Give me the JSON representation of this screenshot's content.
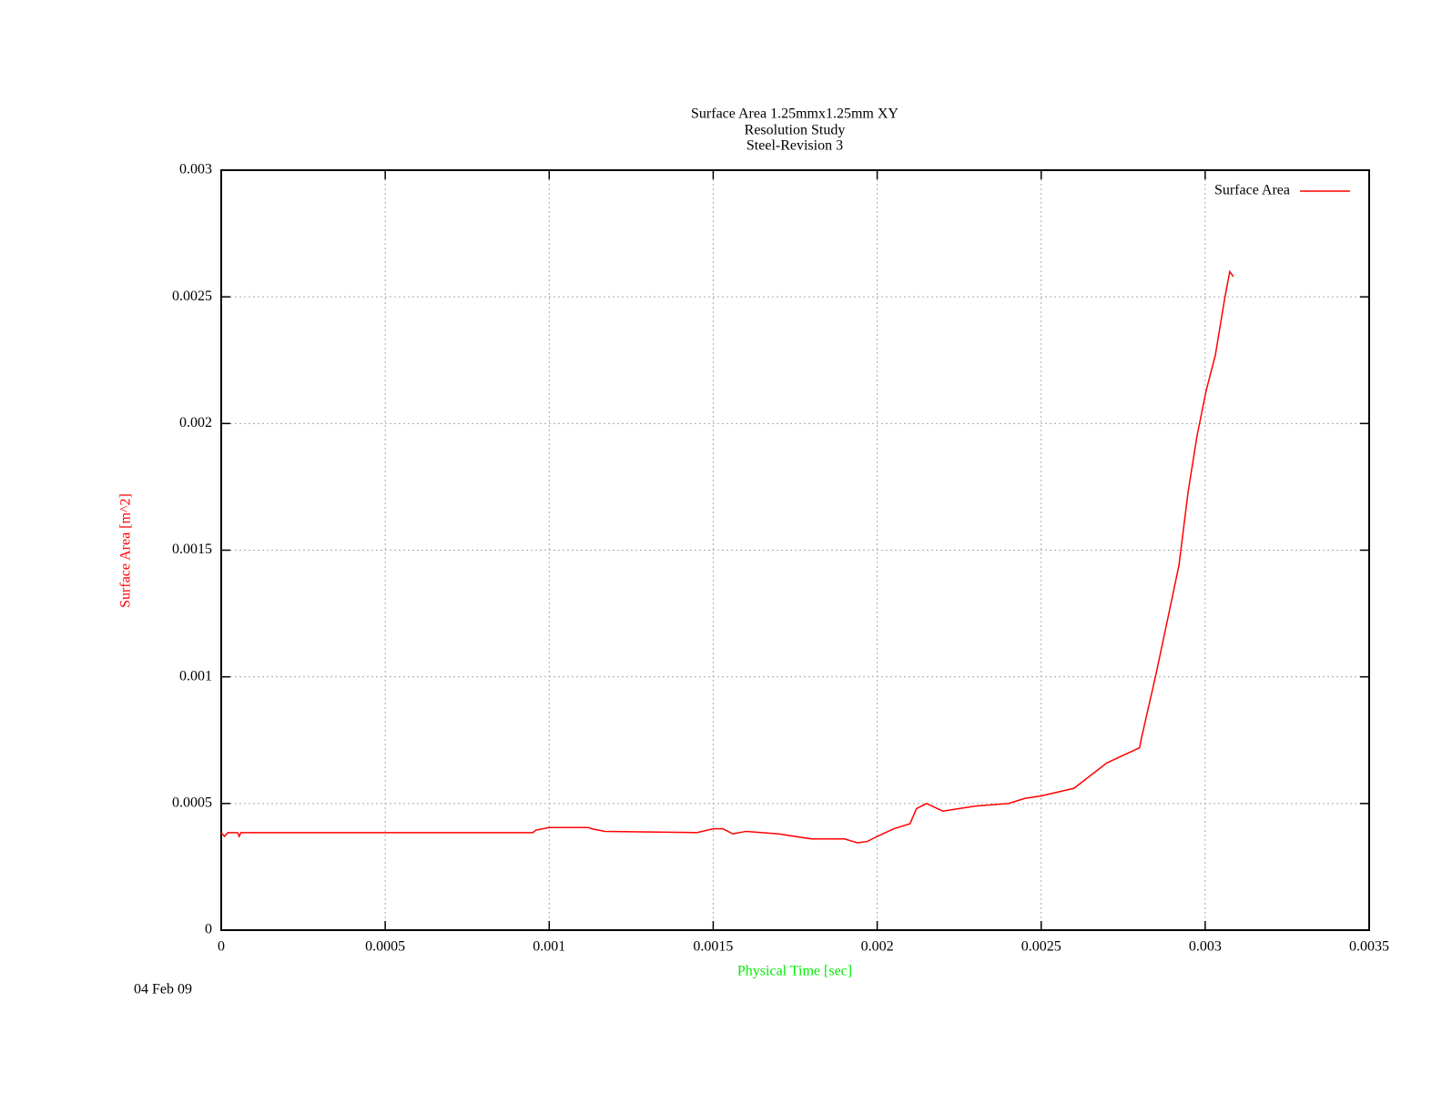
{
  "chart_data": {
    "type": "line",
    "title": [
      "Surface Area 1.25mmx1.25mm XY",
      "Resolution Study",
      "Steel-Revision 3"
    ],
    "xlabel": "Physical Time [sec]",
    "ylabel": "Surface Area [m^2]",
    "xlabel_color": "#00ee00",
    "ylabel_color": "#ff0000",
    "annotation": "04 Feb 09",
    "xlim": [
      0,
      0.0035
    ],
    "xticks": [
      0,
      0.0005,
      0.001,
      0.0015,
      0.002,
      0.0025,
      0.003,
      0.0035
    ],
    "ylim": [
      0,
      0.003
    ],
    "yticks": [
      0,
      0.0005,
      0.001,
      0.0015,
      0.002,
      0.0025,
      0.003
    ],
    "grid": true,
    "legend": "upper right",
    "series": [
      {
        "name": "Surface Area",
        "color": "#ff0000",
        "x": [
          0,
          1e-05,
          2e-05,
          5e-05,
          5.5e-05,
          6e-05,
          0.00095,
          0.00096,
          0.001,
          0.00112,
          0.00113,
          0.00117,
          0.00145,
          0.0015,
          0.00153,
          0.00156,
          0.0016,
          0.0017,
          0.0018,
          0.0019,
          0.00194,
          0.00197,
          0.002,
          0.00205,
          0.0021,
          0.00212,
          0.00215,
          0.0022,
          0.0023,
          0.0024,
          0.00245,
          0.0025,
          0.0026,
          0.0027,
          0.0028,
          0.002806,
          0.00285,
          0.002886,
          0.00292,
          0.002948,
          0.002975,
          0.003003,
          0.003031,
          0.003059,
          0.003075,
          0.003086
        ],
        "values": [
          0.000385,
          0.00037,
          0.000385,
          0.000385,
          0.00037,
          0.000385,
          0.000385,
          0.000395,
          0.000405,
          0.000405,
          0.0004,
          0.00039,
          0.000385,
          0.0004,
          0.0004,
          0.00038,
          0.00039,
          0.00038,
          0.00036,
          0.00036,
          0.000345,
          0.00035,
          0.00037,
          0.0004,
          0.00042,
          0.00048,
          0.0005,
          0.00047,
          0.00049,
          0.0005,
          0.00052,
          0.00053,
          0.00056,
          0.00066,
          0.00072,
          0.00076,
          0.00101,
          0.00123,
          0.00144,
          0.00173,
          0.00195,
          0.00213,
          0.00227,
          0.00249,
          0.0026,
          0.00258
        ]
      }
    ]
  }
}
